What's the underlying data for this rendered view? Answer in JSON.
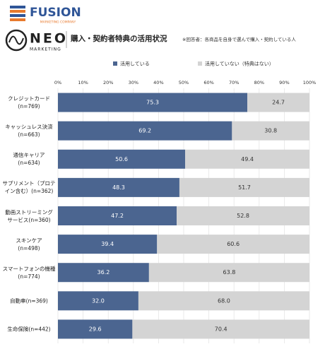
{
  "header": {
    "brand": "FUSION",
    "brand_sub": "MARKETING COMPANY",
    "logo": "NEO",
    "logo_sub": "MARKETING"
  },
  "chart_data": {
    "type": "stacked_barh",
    "title": "購入・契約者特典の活用状況",
    "subtitle": "※回答者：各商品を自身で選んで購入・契約している人",
    "categories": [
      "クレジットカード\n(n=769)",
      "キャッシュレス決済\n(n=663)",
      "通信キャリア\n(n=634)",
      "サプリメント（プロテ\nイン含む）(n=362)",
      "動画ストリーミング\nサービス(n=360)",
      "スキンケア\n(n=498)",
      "スマートフォンの機種\n(n=774)",
      "自動車(n=369)",
      "生命保険(n=442)"
    ],
    "series": [
      {
        "name": "活用している",
        "color": "#4b6590",
        "label_color": "#ffffff",
        "values": [
          75.3,
          69.2,
          50.6,
          48.3,
          47.2,
          39.4,
          36.2,
          32.0,
          29.6
        ],
        "value_labels": [
          "75.3",
          "69.2",
          "50.6",
          "48.3",
          "47.2",
          "39.4",
          "36.2",
          "32.0",
          "29.6"
        ]
      },
      {
        "name": "活用していない（特典はない）",
        "color": "#d4d4d4",
        "label_color": "#333333",
        "values": [
          24.7,
          30.8,
          49.4,
          51.7,
          52.8,
          60.6,
          63.8,
          68.0,
          70.4
        ],
        "value_labels": [
          "24.7",
          "30.8",
          "49.4",
          "51.7",
          "52.8",
          "60.6",
          "63.8",
          "68.0",
          "70.4"
        ]
      }
    ],
    "xlim": [
      0,
      100
    ],
    "xticks": [
      {
        "value": 0,
        "label": "0%"
      },
      {
        "value": 10,
        "label": "10%"
      },
      {
        "value": 20,
        "label": "20%"
      },
      {
        "value": 30,
        "label": "30%"
      },
      {
        "value": 40,
        "label": "40%"
      },
      {
        "value": 50,
        "label": "50%"
      },
      {
        "value": 60,
        "label": "60%"
      },
      {
        "value": 70,
        "label": "70%"
      },
      {
        "value": 80,
        "label": "80%"
      },
      {
        "value": 90,
        "label": "90%"
      },
      {
        "value": 100,
        "label": "100%"
      }
    ],
    "grid": true
  }
}
